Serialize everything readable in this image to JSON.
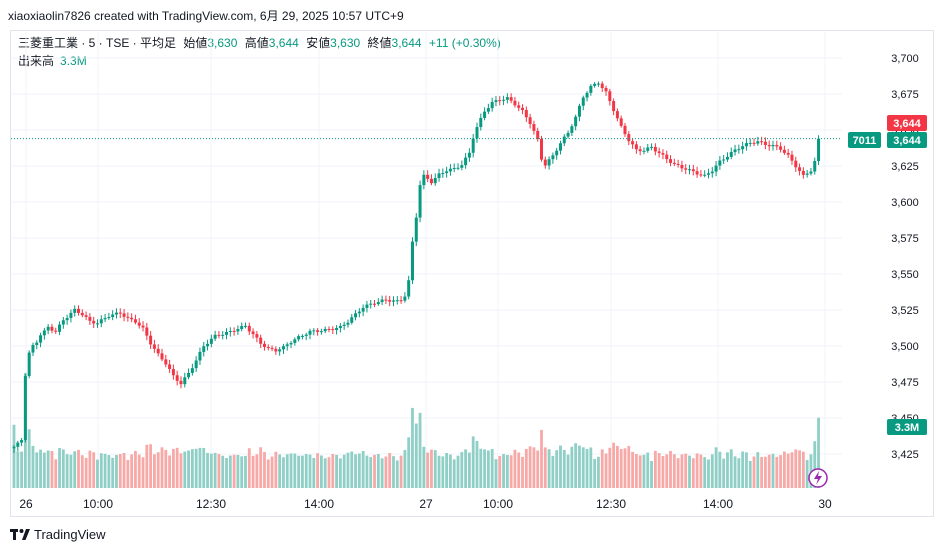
{
  "header": {
    "credit": "xiaoxiaolin7826 created with TradingView.com, 6月 29, 2025 10:57 UTC+9"
  },
  "legend": {
    "symbol": "三菱重工業 · 5 · TSE · 平均足",
    "open_label": "始値",
    "open": "3,630",
    "high_label": "高値",
    "high": "3,644",
    "low_label": "安値",
    "low": "3,630",
    "close_label": "終値",
    "close": "3,644",
    "change": "+11 (+0.30%)",
    "volume_label": "出来高",
    "volume": "3.3M"
  },
  "price_badges": {
    "last_price": "3,644",
    "ticker": "7011",
    "close_price": "3,644",
    "volume": "3.3M"
  },
  "footer": {
    "brand": "TradingView"
  },
  "colors": {
    "up": "#089981",
    "down": "#f23645",
    "up_vol": "#8fcfc6",
    "down_vol": "#f7a9a7"
  },
  "chart_data": {
    "type": "candlestick",
    "y_axis": {
      "ticks": [
        "3,700",
        "3,675",
        "3,650",
        "3,625",
        "3,600",
        "3,575",
        "3,550",
        "3,525",
        "3,500",
        "3,475",
        "3,450",
        "3,425"
      ],
      "min": 3405,
      "max": 3710
    },
    "x_axis": {
      "ticks": [
        "26",
        "10:00",
        "12:30",
        "14:00",
        "27",
        "10:00",
        "12:30",
        "14:00",
        "30"
      ]
    },
    "last_price": 3644,
    "anchors": [
      [
        0,
        3430
      ],
      [
        1,
        3432
      ],
      [
        2,
        3435
      ],
      [
        3,
        3480
      ],
      [
        4,
        3495
      ],
      [
        5,
        3500
      ],
      [
        6,
        3503
      ],
      [
        7,
        3508
      ],
      [
        8,
        3510
      ],
      [
        9,
        3513
      ],
      [
        11,
        3510
      ],
      [
        13,
        3518
      ],
      [
        16,
        3525
      ],
      [
        18,
        3522
      ],
      [
        20,
        3517
      ],
      [
        22,
        3516
      ],
      [
        25,
        3521
      ],
      [
        28,
        3523
      ],
      [
        30,
        3519
      ],
      [
        32,
        3517
      ],
      [
        34,
        3512
      ],
      [
        36,
        3502
      ],
      [
        38,
        3494
      ],
      [
        40,
        3488
      ],
      [
        42,
        3479
      ],
      [
        44,
        3474
      ],
      [
        46,
        3481
      ],
      [
        48,
        3490
      ],
      [
        50,
        3500
      ],
      [
        53,
        3507
      ],
      [
        56,
        3509
      ],
      [
        59,
        3512
      ],
      [
        61,
        3514
      ],
      [
        63,
        3508
      ],
      [
        65,
        3502
      ],
      [
        67,
        3498
      ],
      [
        69,
        3497
      ],
      [
        71,
        3499
      ],
      [
        73,
        3503
      ],
      [
        75,
        3506
      ],
      [
        78,
        3510
      ],
      [
        82,
        3511
      ],
      [
        86,
        3513
      ],
      [
        88,
        3517
      ],
      [
        90,
        3522
      ],
      [
        92,
        3527
      ],
      [
        95,
        3530
      ],
      [
        98,
        3532
      ],
      [
        101,
        3531
      ],
      [
        102,
        3532
      ],
      [
        103,
        3535
      ],
      [
        104,
        3545
      ],
      [
        105,
        3572
      ],
      [
        106,
        3590
      ],
      [
        107,
        3612
      ],
      [
        108,
        3618
      ],
      [
        110,
        3614
      ],
      [
        112,
        3619
      ],
      [
        114,
        3622
      ],
      [
        116,
        3623
      ],
      [
        118,
        3626
      ],
      [
        120,
        3634
      ],
      [
        121,
        3645
      ],
      [
        122,
        3652
      ],
      [
        124,
        3663
      ],
      [
        126,
        3669
      ],
      [
        128,
        3671
      ],
      [
        130,
        3672
      ],
      [
        132,
        3668
      ],
      [
        134,
        3663
      ],
      [
        136,
        3655
      ],
      [
        138,
        3643
      ],
      [
        139,
        3630
      ],
      [
        140,
        3626
      ],
      [
        142,
        3632
      ],
      [
        144,
        3641
      ],
      [
        146,
        3648
      ],
      [
        148,
        3659
      ],
      [
        150,
        3673
      ],
      [
        152,
        3680
      ],
      [
        154,
        3683
      ],
      [
        156,
        3676
      ],
      [
        158,
        3664
      ],
      [
        160,
        3652
      ],
      [
        162,
        3643
      ],
      [
        164,
        3636
      ],
      [
        166,
        3636
      ],
      [
        168,
        3638
      ],
      [
        170,
        3634
      ],
      [
        172,
        3630
      ],
      [
        174,
        3626
      ],
      [
        176,
        3624
      ],
      [
        178,
        3622
      ],
      [
        180,
        3620
      ],
      [
        182,
        3618
      ],
      [
        184,
        3622
      ],
      [
        186,
        3628
      ],
      [
        188,
        3632
      ],
      [
        190,
        3636
      ],
      [
        192,
        3639
      ],
      [
        194,
        3641
      ],
      [
        196,
        3642
      ],
      [
        198,
        3640
      ],
      [
        200,
        3639
      ],
      [
        202,
        3637
      ],
      [
        204,
        3632
      ],
      [
        206,
        3625
      ],
      [
        208,
        3618
      ],
      [
        210,
        3622
      ],
      [
        211,
        3628
      ],
      [
        212,
        3644
      ]
    ],
    "volume_max": 5400000,
    "volume_last": 3300000
  }
}
